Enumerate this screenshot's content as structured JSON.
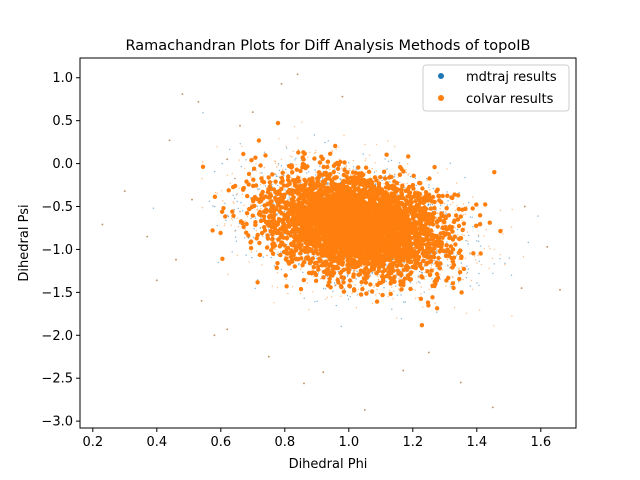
{
  "chart_data": {
    "type": "scatter",
    "title": "Ramachandran Plots for Diff Analysis Methods of topoIB",
    "xlabel": "Dihedral Phi",
    "ylabel": "Dihedral Psi",
    "xlim": [
      0.16,
      1.71
    ],
    "ylim": [
      -3.08,
      1.23
    ],
    "xticks": [
      0.2,
      0.4,
      0.6,
      0.8,
      1.0,
      1.2,
      1.4,
      1.6
    ],
    "xtick_labels": [
      "0.2",
      "0.4",
      "0.6",
      "0.8",
      "1.0",
      "1.2",
      "1.4",
      "1.6"
    ],
    "yticks": [
      1.0,
      0.5,
      0.0,
      -0.5,
      -1.0,
      -1.5,
      -2.0,
      -2.5,
      -3.0
    ],
    "ytick_labels": [
      "1.0",
      "0.5",
      "0.0",
      "−0.5",
      "−1.0",
      "−1.5",
      "−2.0",
      "−2.5",
      "−3.0"
    ],
    "grid": false,
    "legend_position": "top-right",
    "series": [
      {
        "name": "mdtraj results",
        "color": "#1f77b4",
        "distribution": {
          "center": [
            1.02,
            -0.72
          ],
          "std": [
            0.14,
            0.3
          ],
          "correlation": -0.25
        }
      },
      {
        "name": "colvar results",
        "color": "#ff7f0e",
        "distribution": {
          "center": [
            1.02,
            -0.72
          ],
          "std": [
            0.14,
            0.3
          ],
          "correlation": -0.25
        }
      }
    ],
    "outliers": [
      [
        0.23,
        -0.71
      ],
      [
        0.3,
        -0.32
      ],
      [
        0.37,
        -0.85
      ],
      [
        0.4,
        -1.36
      ],
      [
        0.44,
        0.27
      ],
      [
        0.48,
        0.81
      ],
      [
        0.53,
        0.72
      ],
      [
        0.46,
        -1.12
      ],
      [
        0.51,
        -0.42
      ],
      [
        0.54,
        -1.6
      ],
      [
        0.58,
        -2.0
      ],
      [
        0.62,
        -1.93
      ],
      [
        0.75,
        -2.25
      ],
      [
        0.66,
        0.44
      ],
      [
        0.79,
        0.93
      ],
      [
        0.84,
        1.04
      ],
      [
        0.86,
        -2.56
      ],
      [
        1.05,
        -2.87
      ],
      [
        1.35,
        -2.55
      ],
      [
        1.62,
        -0.97
      ],
      [
        1.66,
        -1.47
      ],
      [
        1.54,
        -1.45
      ],
      [
        1.55,
        -0.5
      ],
      [
        0.92,
        -2.43
      ],
      [
        1.17,
        -2.41
      ],
      [
        0.7,
        0.6
      ],
      [
        1.25,
        -2.2
      ],
      [
        0.98,
        0.78
      ],
      [
        1.45,
        -2.84
      ],
      [
        0.62,
        0.05
      ]
    ]
  }
}
